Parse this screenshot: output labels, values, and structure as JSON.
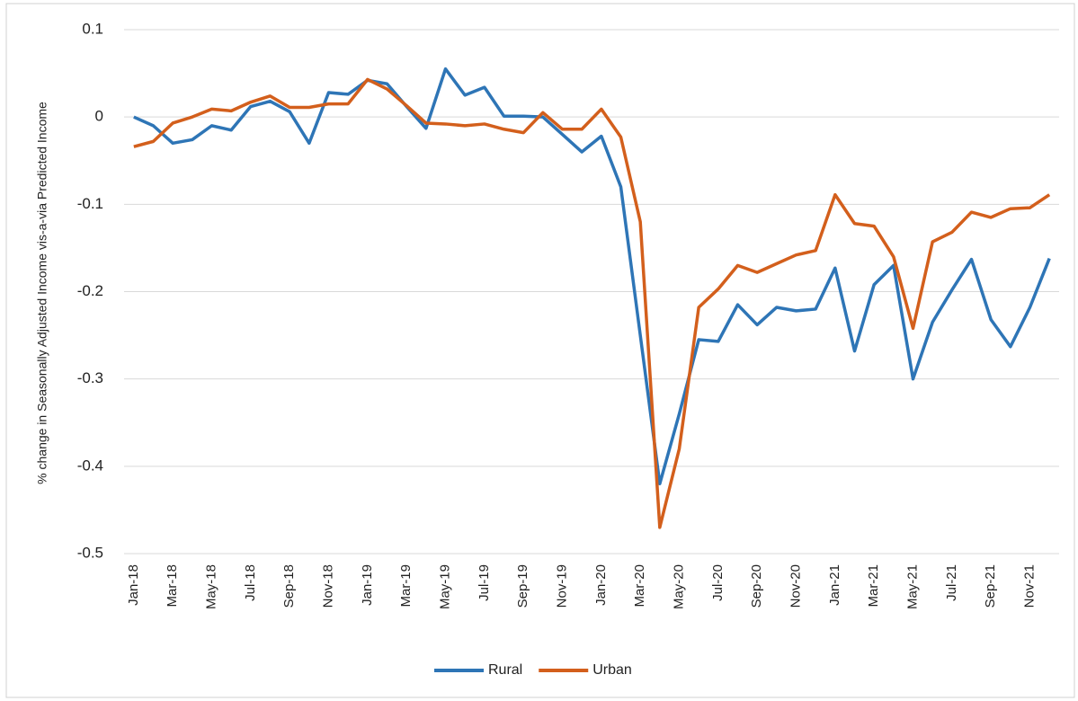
{
  "chart_data": {
    "type": "line",
    "y_label": "% change in Seasonally Adjusted Income vis-a-via Predicted Income",
    "categories": [
      "Jan-18",
      null,
      "Mar-18",
      null,
      "May-18",
      null,
      "Jul-18",
      null,
      "Sep-18",
      null,
      "Nov-18",
      null,
      "Jan-19",
      null,
      "Mar-19",
      null,
      "May-19",
      null,
      "Jul-19",
      null,
      "Sep-19",
      null,
      "Nov-19",
      null,
      "Jan-20",
      null,
      "Mar-20",
      null,
      "May-20",
      null,
      "Jul-20",
      null,
      "Sep-20",
      null,
      "Nov-20",
      null,
      "Jan-21",
      null,
      "Mar-21",
      null,
      "May-21",
      null,
      "Jul-21",
      null,
      "Sep-21",
      null,
      "Nov-21",
      null
    ],
    "series": [
      {
        "name": "Rural",
        "color": "#2e75b6",
        "values": [
          0,
          -0.01,
          -0.03,
          -0.026,
          -0.01,
          -0.015,
          0.012,
          0.018,
          0.006,
          -0.03,
          0.028,
          0.026,
          0.042,
          0.038,
          0.012,
          -0.013,
          0.055,
          0.025,
          0.034,
          0.001,
          0.001,
          0,
          -0.02,
          -0.04,
          -0.022,
          -0.08,
          -0.25,
          -0.42,
          -0.34,
          -0.255,
          -0.257,
          -0.215,
          -0.238,
          -0.218,
          -0.222,
          -0.22,
          -0.173,
          -0.268,
          -0.192,
          -0.17,
          -0.3,
          -0.235,
          -0.198,
          -0.163,
          -0.232,
          -0.263,
          -0.218,
          -0.162
        ]
      },
      {
        "name": "Urban",
        "color": "#d35f1c",
        "values": [
          -0.034,
          -0.028,
          -0.007,
          0,
          0.009,
          0.007,
          0.017,
          0.024,
          0.011,
          0.011,
          0.015,
          0.015,
          0.043,
          0.032,
          0.013,
          -0.007,
          -0.008,
          -0.01,
          -0.008,
          -0.014,
          -0.018,
          0.005,
          -0.014,
          -0.014,
          0.009,
          -0.023,
          -0.12,
          -0.47,
          -0.38,
          -0.218,
          -0.197,
          -0.17,
          -0.178,
          -0.168,
          -0.158,
          -0.153,
          -0.089,
          -0.122,
          -0.125,
          -0.16,
          -0.242,
          -0.143,
          -0.132,
          -0.109,
          -0.115,
          -0.105,
          -0.104,
          -0.089
        ]
      }
    ],
    "ylim": [
      -0.5,
      0.1
    ],
    "yticks": [
      -0.5,
      -0.4,
      -0.3,
      -0.2,
      -0.1,
      0,
      0.1
    ],
    "grid": true,
    "legend": "bottom"
  }
}
